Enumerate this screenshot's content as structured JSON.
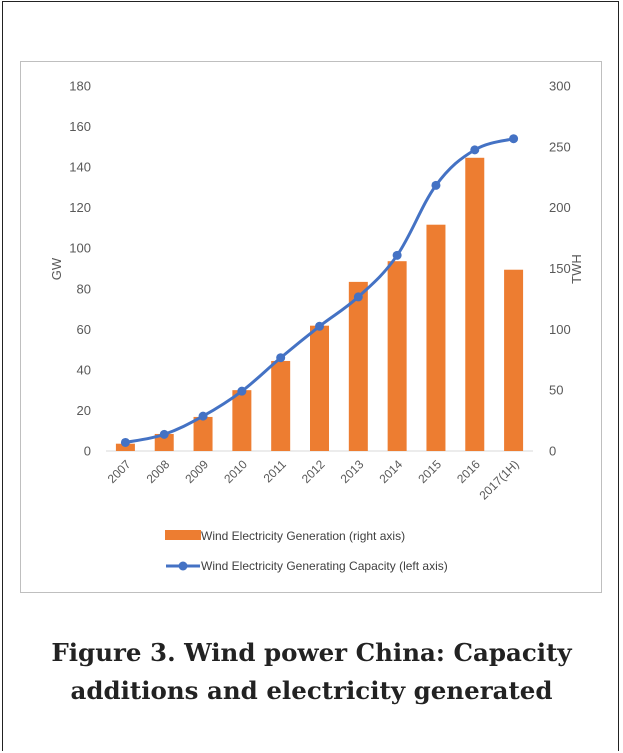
{
  "chart_data": {
    "type": "bar",
    "categories": [
      "2007",
      "2008",
      "2009",
      "2010",
      "2011",
      "2012",
      "2013",
      "2014",
      "2015",
      "2016",
      "2017(1H)"
    ],
    "series": [
      {
        "name": "Wind Electricity Generation (right axis)",
        "type": "bar",
        "axis": "right",
        "color": "#ED7D31",
        "values": [
          6,
          14,
          28,
          50,
          74,
          103,
          139,
          156,
          186,
          241,
          149
        ]
      },
      {
        "name": "Wind Electricity Generating Capacity (left axis)",
        "type": "line",
        "axis": "left",
        "color": "#4472C4",
        "values": [
          4.2,
          8.2,
          17.2,
          29.5,
          46,
          61.5,
          76,
          96.5,
          131,
          148.5,
          154
        ]
      }
    ],
    "y_left": {
      "label": "GW",
      "range": [
        0,
        180
      ],
      "ticks": [
        0,
        20,
        40,
        60,
        80,
        100,
        120,
        140,
        160,
        180
      ]
    },
    "y_right": {
      "label": "TWH",
      "range": [
        0,
        300
      ],
      "ticks": [
        0,
        50,
        100,
        150,
        200,
        250,
        300
      ]
    },
    "legend_position": "bottom",
    "grid": false
  },
  "caption": {
    "line1": "Figure 3. Wind power China: Capacity",
    "line2": "additions and electricity generated"
  }
}
